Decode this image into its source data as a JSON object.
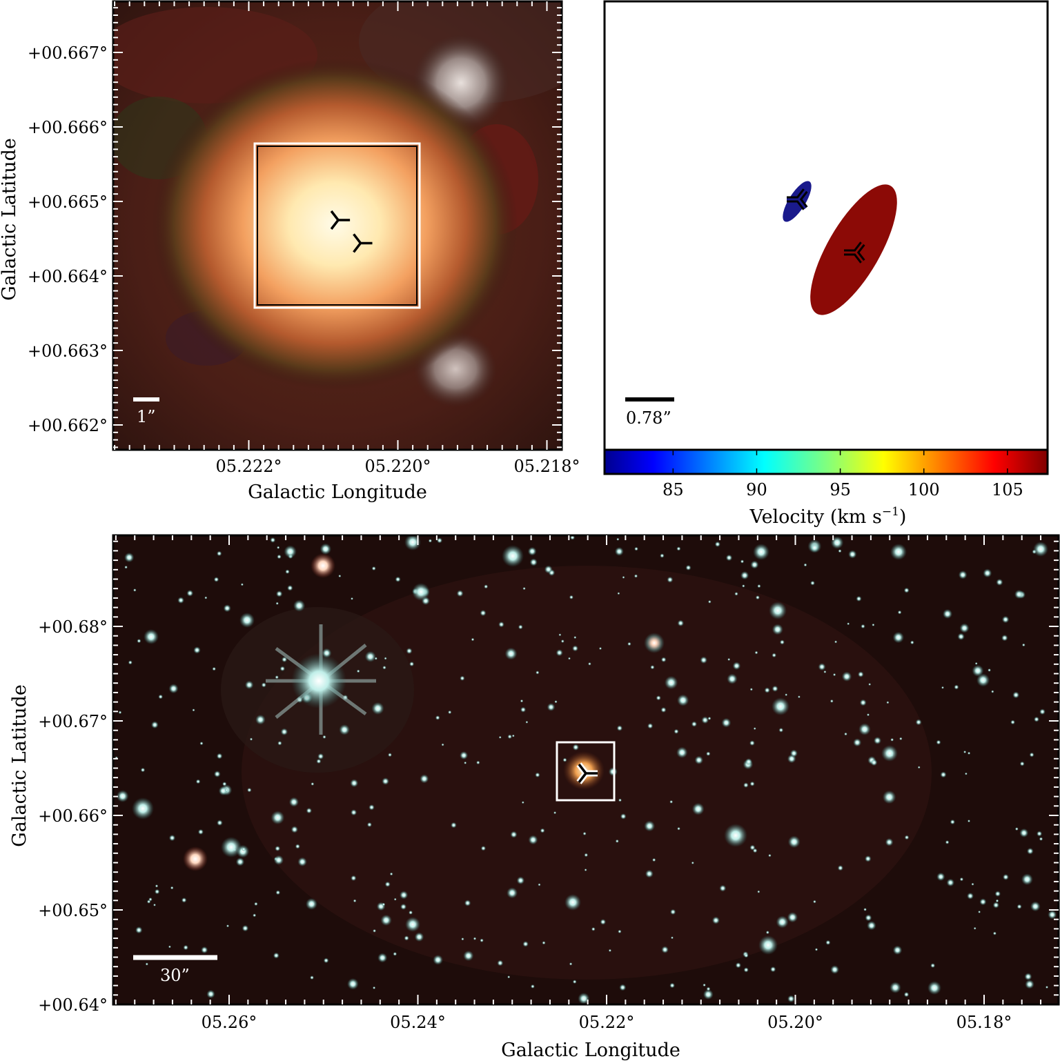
{
  "figure": {
    "top_left": {
      "title": "",
      "xlabel": "Galactic Longitude",
      "ylabel": "Galactic Latitude",
      "x_ticks": [
        {
          "value": 5.222,
          "label": "05.222°"
        },
        {
          "value": 5.22,
          "label": "05.220°"
        },
        {
          "value": 5.218,
          "label": "05.218°"
        }
      ],
      "y_ticks": [
        {
          "value": 0.667,
          "label": "+00.667°"
        },
        {
          "value": 0.666,
          "label": "+00.666°"
        },
        {
          "value": 0.665,
          "label": "+00.665°"
        },
        {
          "value": 0.664,
          "label": "+00.664°"
        },
        {
          "value": 0.663,
          "label": "+00.663°"
        },
        {
          "value": 0.662,
          "label": "+00.662°"
        }
      ],
      "scale_bar": {
        "label": "1”",
        "color": "#ffffff"
      },
      "markers": [
        {
          "name": "source-a",
          "l": 5.2208,
          "b": 0.66475
        },
        {
          "name": "source-b",
          "l": 5.2205,
          "b": 0.66444
        }
      ],
      "zoom_box": {
        "color": "#ffffff"
      }
    },
    "top_right": {
      "colorbar": {
        "label": "Velocity (km s",
        "label_sup": "−1",
        "label_end": ")",
        "ticks": [
          {
            "value": 85,
            "label": "85"
          },
          {
            "value": 90,
            "label": "90"
          },
          {
            "value": 95,
            "label": "95"
          },
          {
            "value": 100,
            "label": "100"
          },
          {
            "value": 105,
            "label": "105"
          }
        ],
        "range": [
          80.9,
          107.4
        ],
        "colormap": "jet"
      },
      "scale_bar": {
        "label": "0.78”",
        "color": "#000000"
      },
      "components": [
        {
          "name": "blue-component",
          "velocity": 81,
          "color": "#1a1a8c"
        },
        {
          "name": "red-component",
          "velocity": 107,
          "color": "#8c0a06"
        }
      ]
    },
    "bottom": {
      "title": "",
      "xlabel": "Galactic Longitude",
      "ylabel": "Galactic Latitude",
      "x_ticks": [
        {
          "value": 5.26,
          "label": "05.26°"
        },
        {
          "value": 5.24,
          "label": "05.24°"
        },
        {
          "value": 5.22,
          "label": "05.22°"
        },
        {
          "value": 5.2,
          "label": "05.20°"
        },
        {
          "value": 5.18,
          "label": "05.18°"
        }
      ],
      "y_ticks": [
        {
          "value": 0.68,
          "label": "+00.68°"
        },
        {
          "value": 0.67,
          "label": "+00.67°"
        },
        {
          "value": 0.66,
          "label": "+00.66°"
        },
        {
          "value": 0.65,
          "label": "+00.65°"
        },
        {
          "value": 0.64,
          "label": "+00.64°"
        }
      ],
      "scale_bar": {
        "label": "30”",
        "color": "#ffffff"
      },
      "marker": {
        "name": "target",
        "l": 5.2205,
        "b": 0.6646
      },
      "zoom_box": {
        "color": "#ffffff"
      }
    }
  }
}
